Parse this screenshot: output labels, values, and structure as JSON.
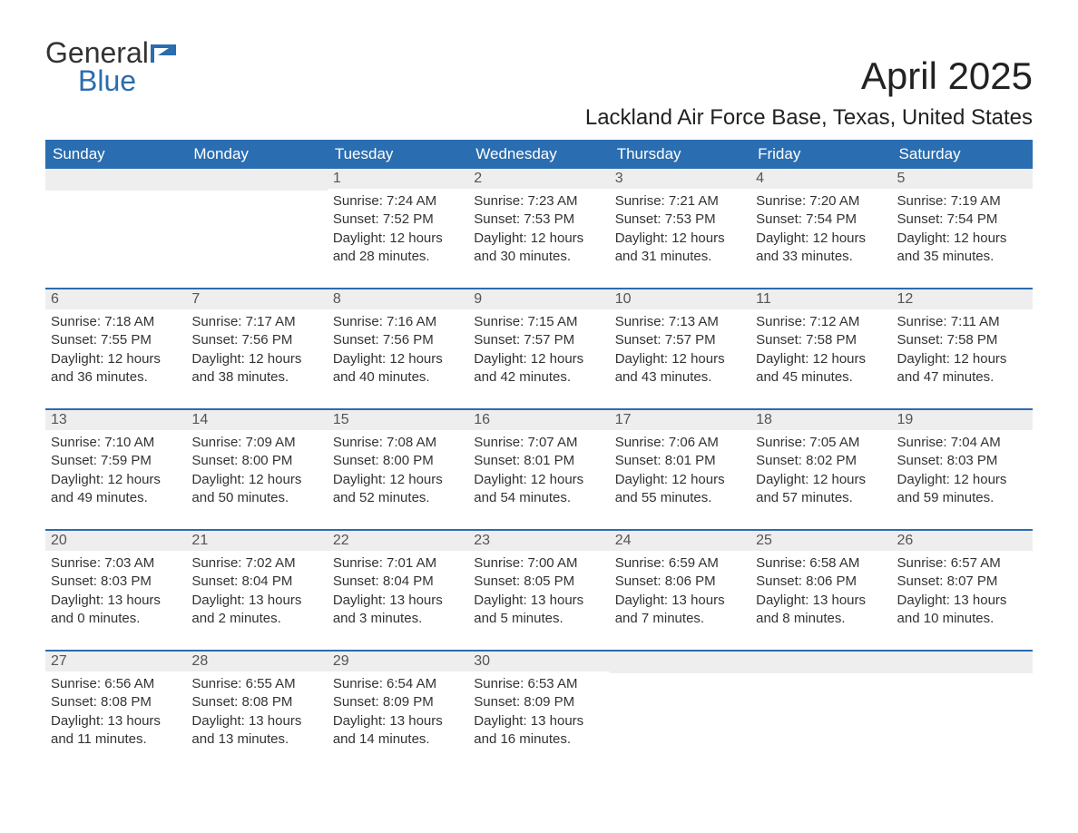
{
  "logo": {
    "part1": "General",
    "part2": "Blue"
  },
  "title": "April 2025",
  "location": "Lackland Air Force Base, Texas, United States",
  "day_headers": [
    "Sunday",
    "Monday",
    "Tuesday",
    "Wednesday",
    "Thursday",
    "Friday",
    "Saturday"
  ],
  "colors": {
    "header_bg": "#2a6db0",
    "header_text": "#ffffff",
    "daynum_bg": "#eeeeee",
    "border": "#2a6db0",
    "logo_blue": "#2a6db0"
  },
  "weeks": [
    [
      {
        "blank": true
      },
      {
        "blank": true
      },
      {
        "day": "1",
        "sunrise": "Sunrise: 7:24 AM",
        "sunset": "Sunset: 7:52 PM",
        "daylight1": "Daylight: 12 hours",
        "daylight2": "and 28 minutes."
      },
      {
        "day": "2",
        "sunrise": "Sunrise: 7:23 AM",
        "sunset": "Sunset: 7:53 PM",
        "daylight1": "Daylight: 12 hours",
        "daylight2": "and 30 minutes."
      },
      {
        "day": "3",
        "sunrise": "Sunrise: 7:21 AM",
        "sunset": "Sunset: 7:53 PM",
        "daylight1": "Daylight: 12 hours",
        "daylight2": "and 31 minutes."
      },
      {
        "day": "4",
        "sunrise": "Sunrise: 7:20 AM",
        "sunset": "Sunset: 7:54 PM",
        "daylight1": "Daylight: 12 hours",
        "daylight2": "and 33 minutes."
      },
      {
        "day": "5",
        "sunrise": "Sunrise: 7:19 AM",
        "sunset": "Sunset: 7:54 PM",
        "daylight1": "Daylight: 12 hours",
        "daylight2": "and 35 minutes."
      }
    ],
    [
      {
        "day": "6",
        "sunrise": "Sunrise: 7:18 AM",
        "sunset": "Sunset: 7:55 PM",
        "daylight1": "Daylight: 12 hours",
        "daylight2": "and 36 minutes."
      },
      {
        "day": "7",
        "sunrise": "Sunrise: 7:17 AM",
        "sunset": "Sunset: 7:56 PM",
        "daylight1": "Daylight: 12 hours",
        "daylight2": "and 38 minutes."
      },
      {
        "day": "8",
        "sunrise": "Sunrise: 7:16 AM",
        "sunset": "Sunset: 7:56 PM",
        "daylight1": "Daylight: 12 hours",
        "daylight2": "and 40 minutes."
      },
      {
        "day": "9",
        "sunrise": "Sunrise: 7:15 AM",
        "sunset": "Sunset: 7:57 PM",
        "daylight1": "Daylight: 12 hours",
        "daylight2": "and 42 minutes."
      },
      {
        "day": "10",
        "sunrise": "Sunrise: 7:13 AM",
        "sunset": "Sunset: 7:57 PM",
        "daylight1": "Daylight: 12 hours",
        "daylight2": "and 43 minutes."
      },
      {
        "day": "11",
        "sunrise": "Sunrise: 7:12 AM",
        "sunset": "Sunset: 7:58 PM",
        "daylight1": "Daylight: 12 hours",
        "daylight2": "and 45 minutes."
      },
      {
        "day": "12",
        "sunrise": "Sunrise: 7:11 AM",
        "sunset": "Sunset: 7:58 PM",
        "daylight1": "Daylight: 12 hours",
        "daylight2": "and 47 minutes."
      }
    ],
    [
      {
        "day": "13",
        "sunrise": "Sunrise: 7:10 AM",
        "sunset": "Sunset: 7:59 PM",
        "daylight1": "Daylight: 12 hours",
        "daylight2": "and 49 minutes."
      },
      {
        "day": "14",
        "sunrise": "Sunrise: 7:09 AM",
        "sunset": "Sunset: 8:00 PM",
        "daylight1": "Daylight: 12 hours",
        "daylight2": "and 50 minutes."
      },
      {
        "day": "15",
        "sunrise": "Sunrise: 7:08 AM",
        "sunset": "Sunset: 8:00 PM",
        "daylight1": "Daylight: 12 hours",
        "daylight2": "and 52 minutes."
      },
      {
        "day": "16",
        "sunrise": "Sunrise: 7:07 AM",
        "sunset": "Sunset: 8:01 PM",
        "daylight1": "Daylight: 12 hours",
        "daylight2": "and 54 minutes."
      },
      {
        "day": "17",
        "sunrise": "Sunrise: 7:06 AM",
        "sunset": "Sunset: 8:01 PM",
        "daylight1": "Daylight: 12 hours",
        "daylight2": "and 55 minutes."
      },
      {
        "day": "18",
        "sunrise": "Sunrise: 7:05 AM",
        "sunset": "Sunset: 8:02 PM",
        "daylight1": "Daylight: 12 hours",
        "daylight2": "and 57 minutes."
      },
      {
        "day": "19",
        "sunrise": "Sunrise: 7:04 AM",
        "sunset": "Sunset: 8:03 PM",
        "daylight1": "Daylight: 12 hours",
        "daylight2": "and 59 minutes."
      }
    ],
    [
      {
        "day": "20",
        "sunrise": "Sunrise: 7:03 AM",
        "sunset": "Sunset: 8:03 PM",
        "daylight1": "Daylight: 13 hours",
        "daylight2": "and 0 minutes."
      },
      {
        "day": "21",
        "sunrise": "Sunrise: 7:02 AM",
        "sunset": "Sunset: 8:04 PM",
        "daylight1": "Daylight: 13 hours",
        "daylight2": "and 2 minutes."
      },
      {
        "day": "22",
        "sunrise": "Sunrise: 7:01 AM",
        "sunset": "Sunset: 8:04 PM",
        "daylight1": "Daylight: 13 hours",
        "daylight2": "and 3 minutes."
      },
      {
        "day": "23",
        "sunrise": "Sunrise: 7:00 AM",
        "sunset": "Sunset: 8:05 PM",
        "daylight1": "Daylight: 13 hours",
        "daylight2": "and 5 minutes."
      },
      {
        "day": "24",
        "sunrise": "Sunrise: 6:59 AM",
        "sunset": "Sunset: 8:06 PM",
        "daylight1": "Daylight: 13 hours",
        "daylight2": "and 7 minutes."
      },
      {
        "day": "25",
        "sunrise": "Sunrise: 6:58 AM",
        "sunset": "Sunset: 8:06 PM",
        "daylight1": "Daylight: 13 hours",
        "daylight2": "and 8 minutes."
      },
      {
        "day": "26",
        "sunrise": "Sunrise: 6:57 AM",
        "sunset": "Sunset: 8:07 PM",
        "daylight1": "Daylight: 13 hours",
        "daylight2": "and 10 minutes."
      }
    ],
    [
      {
        "day": "27",
        "sunrise": "Sunrise: 6:56 AM",
        "sunset": "Sunset: 8:08 PM",
        "daylight1": "Daylight: 13 hours",
        "daylight2": "and 11 minutes."
      },
      {
        "day": "28",
        "sunrise": "Sunrise: 6:55 AM",
        "sunset": "Sunset: 8:08 PM",
        "daylight1": "Daylight: 13 hours",
        "daylight2": "and 13 minutes."
      },
      {
        "day": "29",
        "sunrise": "Sunrise: 6:54 AM",
        "sunset": "Sunset: 8:09 PM",
        "daylight1": "Daylight: 13 hours",
        "daylight2": "and 14 minutes."
      },
      {
        "day": "30",
        "sunrise": "Sunrise: 6:53 AM",
        "sunset": "Sunset: 8:09 PM",
        "daylight1": "Daylight: 13 hours",
        "daylight2": "and 16 minutes."
      },
      {
        "blank": true
      },
      {
        "blank": true
      },
      {
        "blank": true
      }
    ]
  ]
}
